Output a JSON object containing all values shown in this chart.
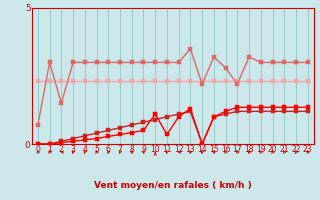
{
  "xlabel": "Vent moyen/en rafales ( km/h )",
  "bg_color": "#cce8ea",
  "grid_color": "#99cccc",
  "xlim": [
    -0.5,
    23.5
  ],
  "ylim": [
    0,
    5
  ],
  "yticks": [
    0,
    5
  ],
  "xticks": [
    0,
    1,
    2,
    3,
    4,
    5,
    6,
    7,
    8,
    9,
    10,
    11,
    12,
    13,
    14,
    15,
    16,
    17,
    18,
    19,
    20,
    21,
    22,
    23
  ],
  "line1_color": "#f0a8a8",
  "line2_color": "#e06868",
  "line3_color": "#cc2222",
  "line4_color": "#ff0000",
  "axis_color": "#cc0000",
  "text_color": "#cc0000",
  "line1_y": [
    2.3,
    2.3,
    2.3,
    2.3,
    2.3,
    2.3,
    2.3,
    2.3,
    2.3,
    2.3,
    2.3,
    2.3,
    2.3,
    2.3,
    2.3,
    2.3,
    2.3,
    2.3,
    2.3,
    2.3,
    2.3,
    2.3,
    2.3,
    2.3
  ],
  "line2_y": [
    0.7,
    3.0,
    1.5,
    3.0,
    3.0,
    3.0,
    3.0,
    3.0,
    3.0,
    3.0,
    3.0,
    3.0,
    3.0,
    3.5,
    2.2,
    3.2,
    2.8,
    2.2,
    3.2,
    3.0,
    3.0,
    3.0,
    3.0,
    3.0
  ],
  "line3_y": [
    0.0,
    0.0,
    0.1,
    0.2,
    0.3,
    0.4,
    0.5,
    0.6,
    0.7,
    0.8,
    0.9,
    1.0,
    1.1,
    1.2,
    0.0,
    1.0,
    1.1,
    1.2,
    1.2,
    1.2,
    1.2,
    1.2,
    1.2,
    1.2
  ],
  "line4_y": [
    0.0,
    0.0,
    0.05,
    0.1,
    0.15,
    0.2,
    0.28,
    0.35,
    0.42,
    0.5,
    1.1,
    0.35,
    1.0,
    1.3,
    0.0,
    1.0,
    1.2,
    1.35,
    1.35,
    1.35,
    1.35,
    1.35,
    1.35,
    1.35
  ],
  "wind_dirs": [
    225,
    225,
    270,
    315,
    315,
    225,
    315,
    315,
    45,
    45,
    180,
    315,
    270,
    315,
    315,
    45,
    225,
    225,
    225,
    225,
    225,
    225,
    225,
    225
  ]
}
